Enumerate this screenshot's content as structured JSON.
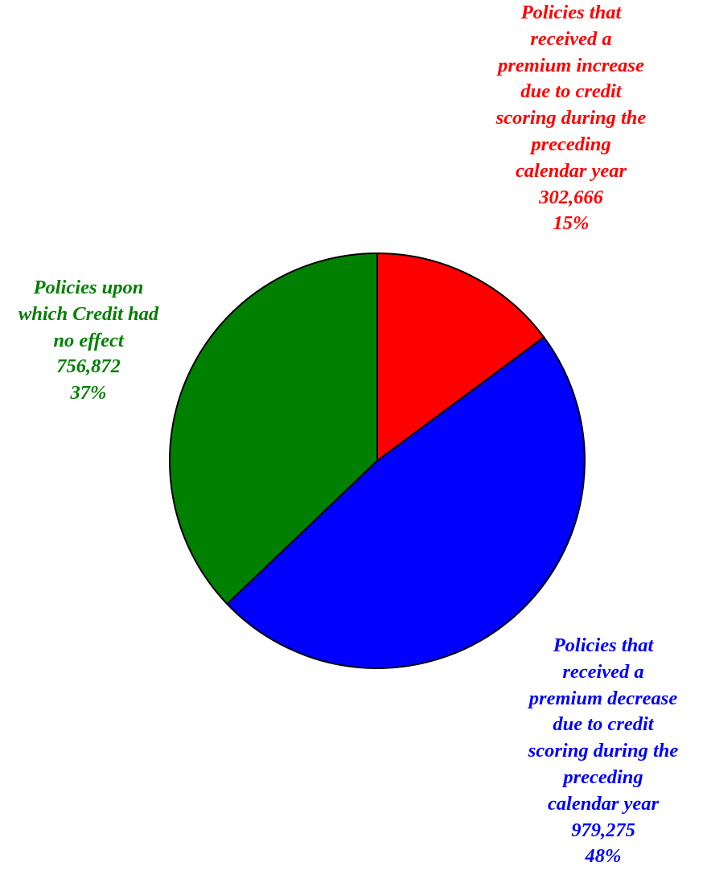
{
  "chart_data": {
    "type": "pie",
    "title": "",
    "start_angle_deg": 0,
    "direction": "clockwise",
    "slices": [
      {
        "label_lines": [
          "Policies that",
          "received a",
          "premium increase",
          "due to credit",
          "scoring during the",
          "preceding",
          "calendar year"
        ],
        "value": 302666,
        "value_text": "302,666",
        "percent": 15,
        "percent_text": "15%",
        "color": "#ff0000"
      },
      {
        "label_lines": [
          "Policies that",
          "received a",
          "premium decrease",
          "due to credit",
          "scoring during the",
          "preceding",
          "calendar year"
        ],
        "value": 979275,
        "value_text": "979,275",
        "percent": 48,
        "percent_text": "48%",
        "color": "#0000ff"
      },
      {
        "label_lines": [
          "Policies upon",
          "which Credit had",
          "no effect"
        ],
        "value": 756872,
        "value_text": "756,872",
        "percent": 37,
        "percent_text": "37%",
        "color": "#008000"
      }
    ]
  }
}
